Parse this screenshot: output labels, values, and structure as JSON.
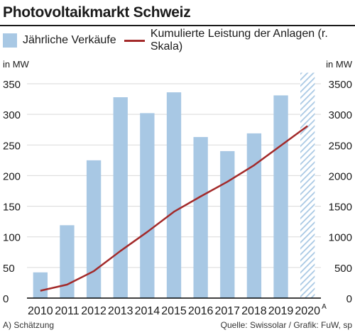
{
  "title": "Photovoltaikmarkt Schweiz",
  "legend": {
    "bars_label": "Jährliche Verkäufe",
    "line_label": "Kumulierte Leistung der Anlagen (r. Skala)"
  },
  "footnote": "A) Schätzung",
  "source": "Quelle: Swissolar / Grafik: FuW, sp",
  "colors": {
    "bar": "#a8c8e4",
    "line": "#a32a2a",
    "axis": "#000000",
    "grid": "#d9d9d9"
  },
  "chart_data": {
    "type": "bar",
    "categories": [
      "2010",
      "2011",
      "2012",
      "2013",
      "2014",
      "2015",
      "2016",
      "2017",
      "2018",
      "2019",
      "2020"
    ],
    "category_suffixes": [
      "",
      "",
      "",
      "",
      "",
      "",
      "",
      "",
      "",
      "",
      "A"
    ],
    "series": [
      {
        "name": "Jährliche Verkäufe",
        "type": "bar",
        "axis": "left",
        "values": [
          42,
          119,
          225,
          328,
          302,
          336,
          263,
          240,
          269,
          331,
          368
        ],
        "estimated": [
          false,
          false,
          false,
          false,
          false,
          false,
          false,
          false,
          false,
          false,
          true
        ]
      },
      {
        "name": "Kumulierte Leistung der Anlagen (r. Skala)",
        "type": "line",
        "axis": "right",
        "values": [
          120,
          220,
          440,
          770,
          1080,
          1410,
          1660,
          1900,
          2170,
          2490,
          2810
        ]
      }
    ],
    "ylabel_left": "in MW",
    "ylabel_right": "in MW",
    "ylim_left": [
      0,
      350
    ],
    "ylim_right": [
      0,
      3500
    ],
    "yticks_left": [
      0,
      50,
      100,
      150,
      200,
      250,
      300,
      350
    ],
    "yticks_right": [
      0,
      500,
      1000,
      1500,
      2000,
      2500,
      3000,
      3500
    ],
    "grid": true,
    "legend_position": "top"
  }
}
